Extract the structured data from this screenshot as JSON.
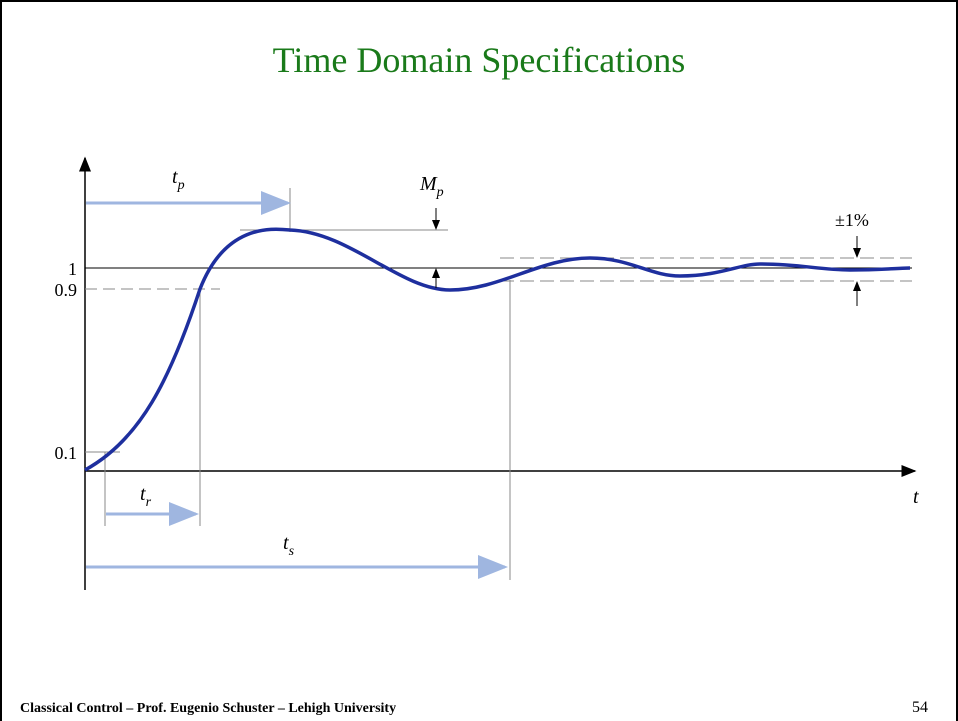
{
  "title": "Time Domain Specifications",
  "labels": {
    "tp": {
      "base": "t",
      "sub": "p"
    },
    "mp": {
      "base": "M",
      "sub": "p"
    },
    "tr": {
      "base": "t",
      "sub": "r"
    },
    "ts": {
      "base": "t",
      "sub": "s"
    },
    "t": "t",
    "band": "±1%",
    "one": "1",
    "ninety": "0.9",
    "ten": "0.1"
  },
  "footer": {
    "text": "Classical Control – Prof. Eugenio Schuster – Lehigh University",
    "page": "54"
  }
}
